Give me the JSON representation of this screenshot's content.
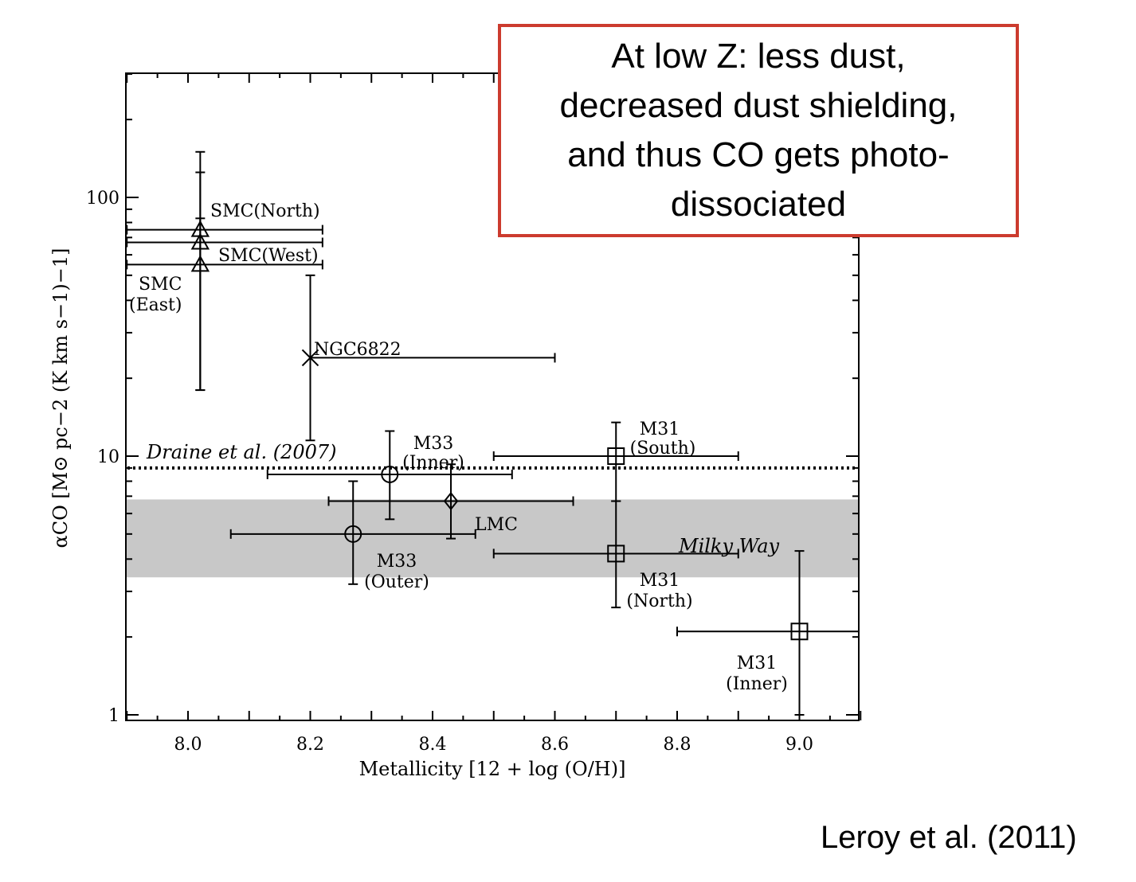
{
  "chart_data": {
    "type": "scatter",
    "xlabel": "Metallicity [12 + log (O/H)]",
    "ylabel": "αCO [M⊙ pc−2 (K km s−1)−1]",
    "xlim": [
      7.9,
      9.1
    ],
    "ylim": [
      1,
      300
    ],
    "yscale": "log",
    "xticks": [
      "8.0",
      "8.2",
      "8.4",
      "8.6",
      "8.8",
      "9.0"
    ],
    "yticks": [
      "1",
      "10",
      "100"
    ],
    "points": [
      {
        "label": "SMC(North)",
        "x": 8.02,
        "y": 75,
        "xerr": [
          0.12,
          0.2
        ],
        "yerr": [
          18,
          150
        ],
        "marker": "triangle"
      },
      {
        "label": "SMC(West)",
        "x": 8.02,
        "y": 67,
        "xerr": [
          0.12,
          0.2
        ],
        "yerr": [
          18,
          125
        ],
        "marker": "triangle"
      },
      {
        "label": "SMC (East)",
        "x": 8.02,
        "y": 55,
        "xerr": [
          0.12,
          0.2
        ],
        "yerr": [
          18,
          83
        ],
        "marker": "triangle"
      },
      {
        "label": "NGC6822",
        "x": 8.2,
        "y": 24,
        "xerr": [
          0.0,
          0.4
        ],
        "yerr": [
          11.5,
          50
        ],
        "marker": "x"
      },
      {
        "label": "M33 (Inner)",
        "x": 8.33,
        "y": 8.5,
        "xerr": [
          8.13,
          8.53
        ],
        "yerr": [
          5.7,
          12.5
        ],
        "marker": "circle"
      },
      {
        "label": "LMC",
        "x": 8.43,
        "y": 6.7,
        "xerr": [
          8.23,
          8.63
        ],
        "yerr": [
          4.8,
          9.3
        ],
        "marker": "diamond"
      },
      {
        "label": "M33 (Outer)",
        "x": 8.27,
        "y": 5.0,
        "xerr": [
          8.07,
          8.47
        ],
        "yerr": [
          3.2,
          8.0
        ],
        "marker": "circle"
      },
      {
        "label": "M31 (South)",
        "x": 8.7,
        "y": 10,
        "xerr": [
          8.5,
          8.9
        ],
        "yerr": [
          6.7,
          13.5
        ],
        "marker": "square"
      },
      {
        "label": "M31 (North)",
        "x": 8.7,
        "y": 4.2,
        "xerr": [
          8.5,
          8.9
        ],
        "yerr": [
          2.6,
          6.7
        ],
        "marker": "square"
      },
      {
        "label": "M31 (Inner)",
        "x": 9.0,
        "y": 2.1,
        "xerr": [
          8.8,
          9.1
        ],
        "yerr": [
          1.0,
          4.3
        ],
        "marker": "square"
      }
    ],
    "reference_lines": [
      {
        "label": "Draine et al. (2007)",
        "y": 9.0,
        "style": "dotted"
      }
    ],
    "bands": [
      {
        "label": "Milky Way",
        "y_range": [
          3.4,
          6.8
        ],
        "color": "#c8c8c8"
      }
    ]
  },
  "callout": {
    "lines": [
      "At low Z: less dust,",
      "decreased dust shielding,",
      "and thus CO gets photo-",
      "dissociated"
    ]
  },
  "citation": "Leroy et al. (2011)"
}
